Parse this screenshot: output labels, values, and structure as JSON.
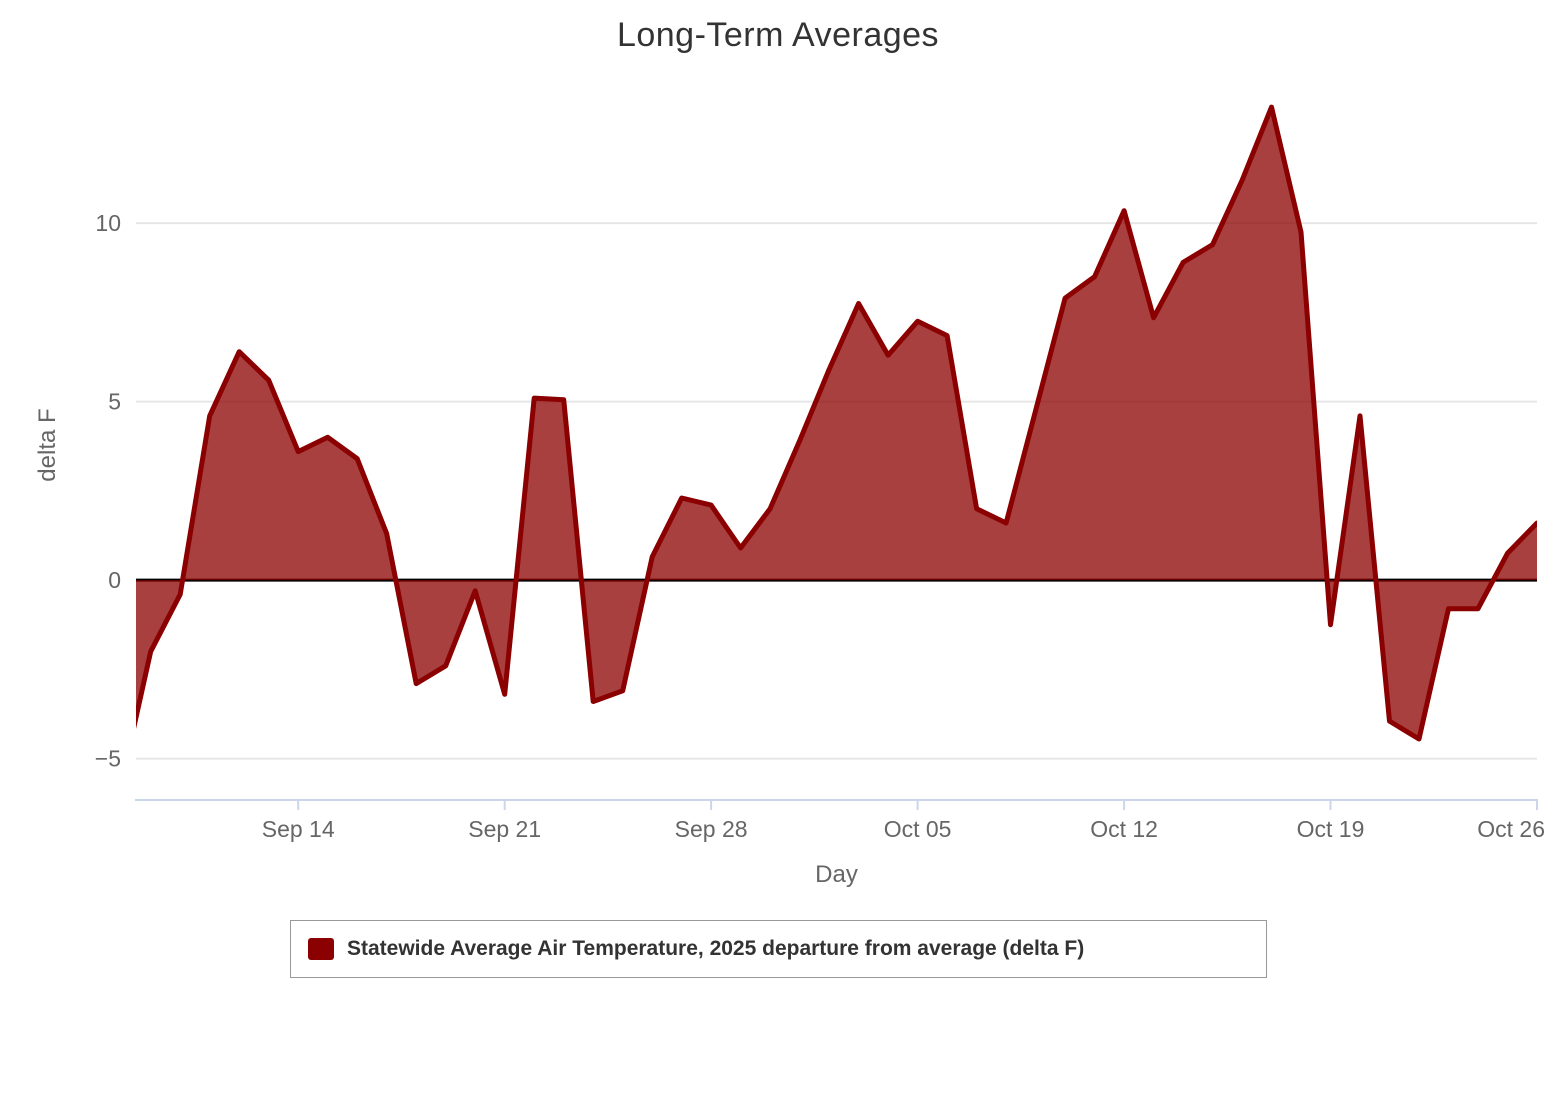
{
  "chart_data": {
    "type": "area",
    "title": "Long-Term Averages",
    "xlabel": "Day",
    "ylabel": "delta F",
    "grid": true,
    "legend_position": "bottom",
    "zero_line": true,
    "ylim": [
      -6.16,
      13.87
    ],
    "grid_color": "#e6e6e6",
    "axis_line_color": "#ccd6eb",
    "zero_line_color": "#000000",
    "label_color": "#666666",
    "title_color": "#333333",
    "y_ticks": [
      {
        "value": -5,
        "label": "−5"
      },
      {
        "value": 0,
        "label": "0"
      },
      {
        "value": 5,
        "label": "5"
      },
      {
        "value": 10,
        "label": "10"
      }
    ],
    "x_ticks": [
      {
        "label": "Sep 14",
        "point_index": 6
      },
      {
        "label": "Sep 21",
        "point_index": 13
      },
      {
        "label": "Sep 28",
        "point_index": 20
      },
      {
        "label": "Oct 05",
        "point_index": 27
      },
      {
        "label": "Oct 12",
        "point_index": 34
      },
      {
        "label": "Oct 19",
        "point_index": 41
      },
      {
        "label": "Oct 26",
        "point_index": 48
      }
    ],
    "series": [
      {
        "name": "Statewide Average Air Temperature, 2025 departure from average (delta F)",
        "line_color": "#8b0000",
        "fill_color": "rgba(139,0,0,0.75)",
        "points": [
          {
            "date": "Sep 8",
            "value": -5.7
          },
          {
            "date": "Sep 9",
            "value": -2.0
          },
          {
            "date": "Sep 10",
            "value": -0.4
          },
          {
            "date": "Sep 11",
            "value": 4.6
          },
          {
            "date": "Sep 12",
            "value": 6.4
          },
          {
            "date": "Sep 13",
            "value": 5.6
          },
          {
            "date": "Sep 14",
            "value": 3.6
          },
          {
            "date": "Sep 15",
            "value": 4.0
          },
          {
            "date": "Sep 16",
            "value": 3.4
          },
          {
            "date": "Sep 17",
            "value": 1.3
          },
          {
            "date": "Sep 18",
            "value": -2.9
          },
          {
            "date": "Sep 19",
            "value": -2.4
          },
          {
            "date": "Sep 20",
            "value": -0.3
          },
          {
            "date": "Sep 21",
            "value": -3.2
          },
          {
            "date": "Sep 22",
            "value": 5.1
          },
          {
            "date": "Sep 23",
            "value": 5.05
          },
          {
            "date": "Sep 24",
            "value": -3.4
          },
          {
            "date": "Sep 25",
            "value": -3.1
          },
          {
            "date": "Sep 26",
            "value": 0.65
          },
          {
            "date": "Sep 27",
            "value": 2.3
          },
          {
            "date": "Sep 28",
            "value": 2.1
          },
          {
            "date": "Sep 29",
            "value": 0.9
          },
          {
            "date": "Sep 30",
            "value": 2.0
          },
          {
            "date": "Oct 1",
            "value": 3.9
          },
          {
            "date": "Oct 2",
            "value": 5.9
          },
          {
            "date": "Oct 3",
            "value": 7.75
          },
          {
            "date": "Oct 4",
            "value": 6.3
          },
          {
            "date": "Oct 5",
            "value": 7.25
          },
          {
            "date": "Oct 6",
            "value": 6.85
          },
          {
            "date": "Oct 7",
            "value": 2.0
          },
          {
            "date": "Oct 8",
            "value": 1.6
          },
          {
            "date": "Oct 9",
            "value": 4.75
          },
          {
            "date": "Oct 10",
            "value": 7.9
          },
          {
            "date": "Oct 11",
            "value": 8.5
          },
          {
            "date": "Oct 12",
            "value": 10.35
          },
          {
            "date": "Oct 13",
            "value": 7.35
          },
          {
            "date": "Oct 14",
            "value": 8.9
          },
          {
            "date": "Oct 15",
            "value": 9.4
          },
          {
            "date": "Oct 16",
            "value": 11.2
          },
          {
            "date": "Oct 17",
            "value": 13.25
          },
          {
            "date": "Oct 18",
            "value": 9.75
          },
          {
            "date": "Oct 19",
            "value": -1.25
          },
          {
            "date": "Oct 20",
            "value": 4.6
          },
          {
            "date": "Oct 21",
            "value": -3.95
          },
          {
            "date": "Oct 22",
            "value": -4.45
          },
          {
            "date": "Oct 23",
            "value": -0.8
          },
          {
            "date": "Oct 24",
            "value": -0.8
          },
          {
            "date": "Oct 25",
            "value": 0.75
          },
          {
            "date": "Oct 26",
            "value": 1.6
          }
        ]
      }
    ]
  }
}
